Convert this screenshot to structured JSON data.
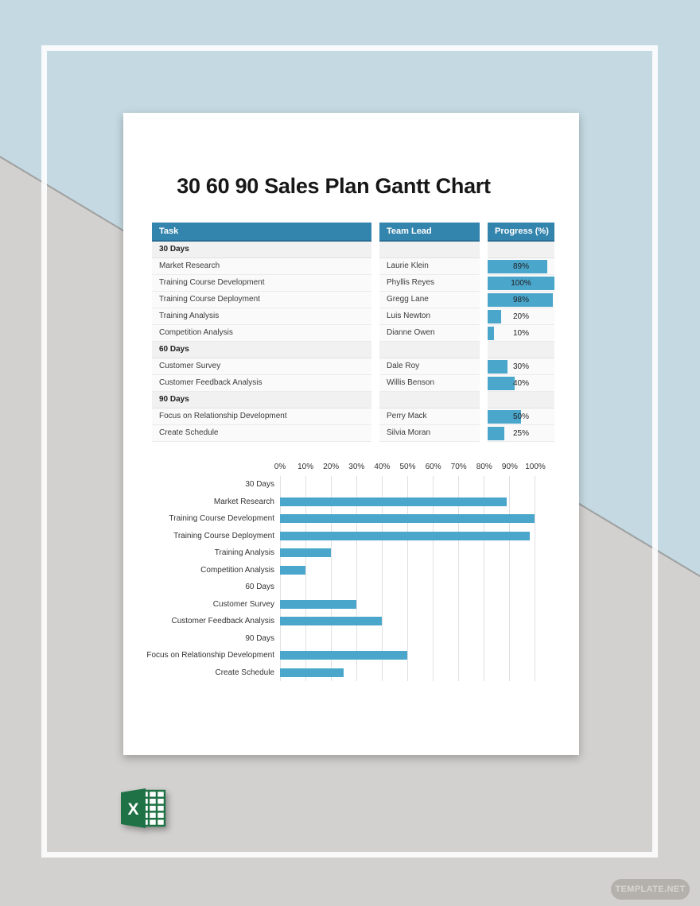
{
  "page": {
    "title": "30 60 90 Sales Plan Gantt Chart"
  },
  "table": {
    "headers": [
      "Task",
      "Team Lead",
      "Progress (%)"
    ],
    "rows": [
      {
        "type": "section",
        "task": "30 Days"
      },
      {
        "type": "task",
        "task": "Market Research",
        "lead": "Laurie Klein",
        "progress": 89,
        "progress_label": "89%"
      },
      {
        "type": "task",
        "task": "Training Course Development",
        "lead": "Phyllis Reyes",
        "progress": 100,
        "progress_label": "100%"
      },
      {
        "type": "task",
        "task": "Training Course Deployment",
        "lead": "Gregg Lane",
        "progress": 98,
        "progress_label": "98%"
      },
      {
        "type": "task",
        "task": "Training Analysis",
        "lead": "Luis Newton",
        "progress": 20,
        "progress_label": "20%"
      },
      {
        "type": "task",
        "task": "Competition Analysis",
        "lead": "Dianne Owen",
        "progress": 10,
        "progress_label": "10%"
      },
      {
        "type": "section",
        "task": "60 Days"
      },
      {
        "type": "task",
        "task": "Customer Survey",
        "lead": "Dale Roy",
        "progress": 30,
        "progress_label": "30%"
      },
      {
        "type": "task",
        "task": "Customer Feedback Analysis",
        "lead": "Willis Benson",
        "progress": 40,
        "progress_label": "40%"
      },
      {
        "type": "section",
        "task": "90 Days"
      },
      {
        "type": "task",
        "task": "Focus on Relationship Development",
        "lead": "Perry Mack",
        "progress": 50,
        "progress_label": "50%"
      },
      {
        "type": "task",
        "task": "Create Schedule",
        "lead": "Silvia Moran",
        "progress": 25,
        "progress_label": "25%"
      }
    ]
  },
  "chart_data": {
    "type": "bar",
    "orientation": "horizontal",
    "categories": [
      "30 Days",
      "Market Research",
      "Training Course Development",
      "Training Course Deployment",
      "Training Analysis",
      "Competition Analysis",
      "60 Days",
      "Customer Survey",
      "Customer Feedback Analysis",
      "90 Days",
      "Focus on Relationship Development",
      "Create Schedule"
    ],
    "values": [
      null,
      89,
      100,
      98,
      20,
      10,
      null,
      30,
      40,
      null,
      50,
      25
    ],
    "x_ticks": [
      "0%",
      "10%",
      "20%",
      "30%",
      "40%",
      "50%",
      "60%",
      "70%",
      "80%",
      "90%",
      "100%"
    ],
    "xlim": [
      0,
      100
    ],
    "grid": true,
    "legend": false,
    "bar_color": "#4ba6cc"
  },
  "branding": {
    "watermark": "TEMPLATE.NET",
    "file_icon": "excel",
    "excel_letter": "X"
  },
  "colors": {
    "header_teal": "#3485ad",
    "bar_blue": "#4ba6cc",
    "bg_blue": "#c4d9e2",
    "bg_gray": "#d3d1cf",
    "excel_green": "#1e7245"
  }
}
